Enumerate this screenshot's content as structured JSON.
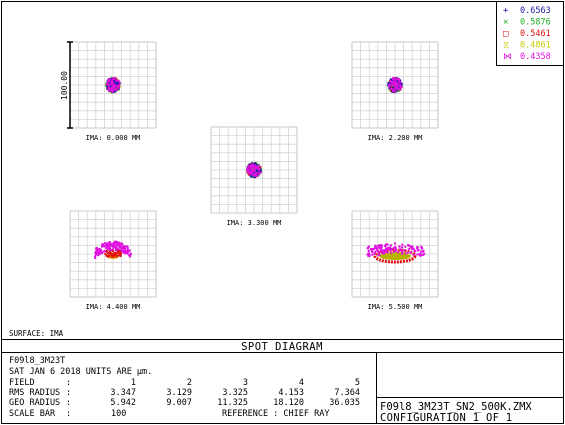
{
  "legend": [
    {
      "symbol": "+",
      "wavelength": "0.6563",
      "color": "#1a1aa8"
    },
    {
      "symbol": "×",
      "wavelength": "0.5876",
      "color": "#20b020"
    },
    {
      "symbol": "□",
      "wavelength": "0.5461",
      "color": "#e01010"
    },
    {
      "symbol": "⧖",
      "wavelength": "0.4861",
      "color": "#c8c800"
    },
    {
      "symbol": "⋈",
      "wavelength": "0.4358",
      "color": "#e010e0"
    }
  ],
  "scale_label": "100.00",
  "surface_label": "SURFACE: IMA",
  "title": "SPOT DIAGRAM",
  "chart_data": {
    "type": "scatter",
    "title": "SPOT DIAGRAM",
    "fields": [
      {
        "label": "IMA: 0.000 MM",
        "spot": "round"
      },
      {
        "label": "IMA: 2.200 MM",
        "spot": "round"
      },
      {
        "label": "IMA: 3.300 MM",
        "spot": "round"
      },
      {
        "label": "IMA: 4.400 MM",
        "spot": "arc"
      },
      {
        "label": "IMA: 5.500 MM",
        "spot": "wide_arc"
      }
    ]
  },
  "info": {
    "lens_name": "F09l8_3M23T",
    "date_units": "SAT JAN 6 2018  UNITS ARE µm.",
    "field_label": "FIELD",
    "field_values": [
      "1",
      "2",
      "3",
      "4",
      "5"
    ],
    "rms_label": "RMS RADIUS",
    "rms_values": [
      "3.347",
      "3.129",
      "3.325",
      "4.153",
      "7.364"
    ],
    "geo_label": "GEO RADIUS",
    "geo_values": [
      "5.942",
      "9.007",
      "11.325",
      "18.120",
      "36.035"
    ],
    "scale_bar_label": "SCALE BAR",
    "scale_bar_value": "100",
    "reference": "REFERENCE  : CHIEF RAY",
    "file_name": "F09l8_3M23T_SN2_500K.ZMX",
    "configuration": "CONFIGURATION 1 OF 1"
  }
}
